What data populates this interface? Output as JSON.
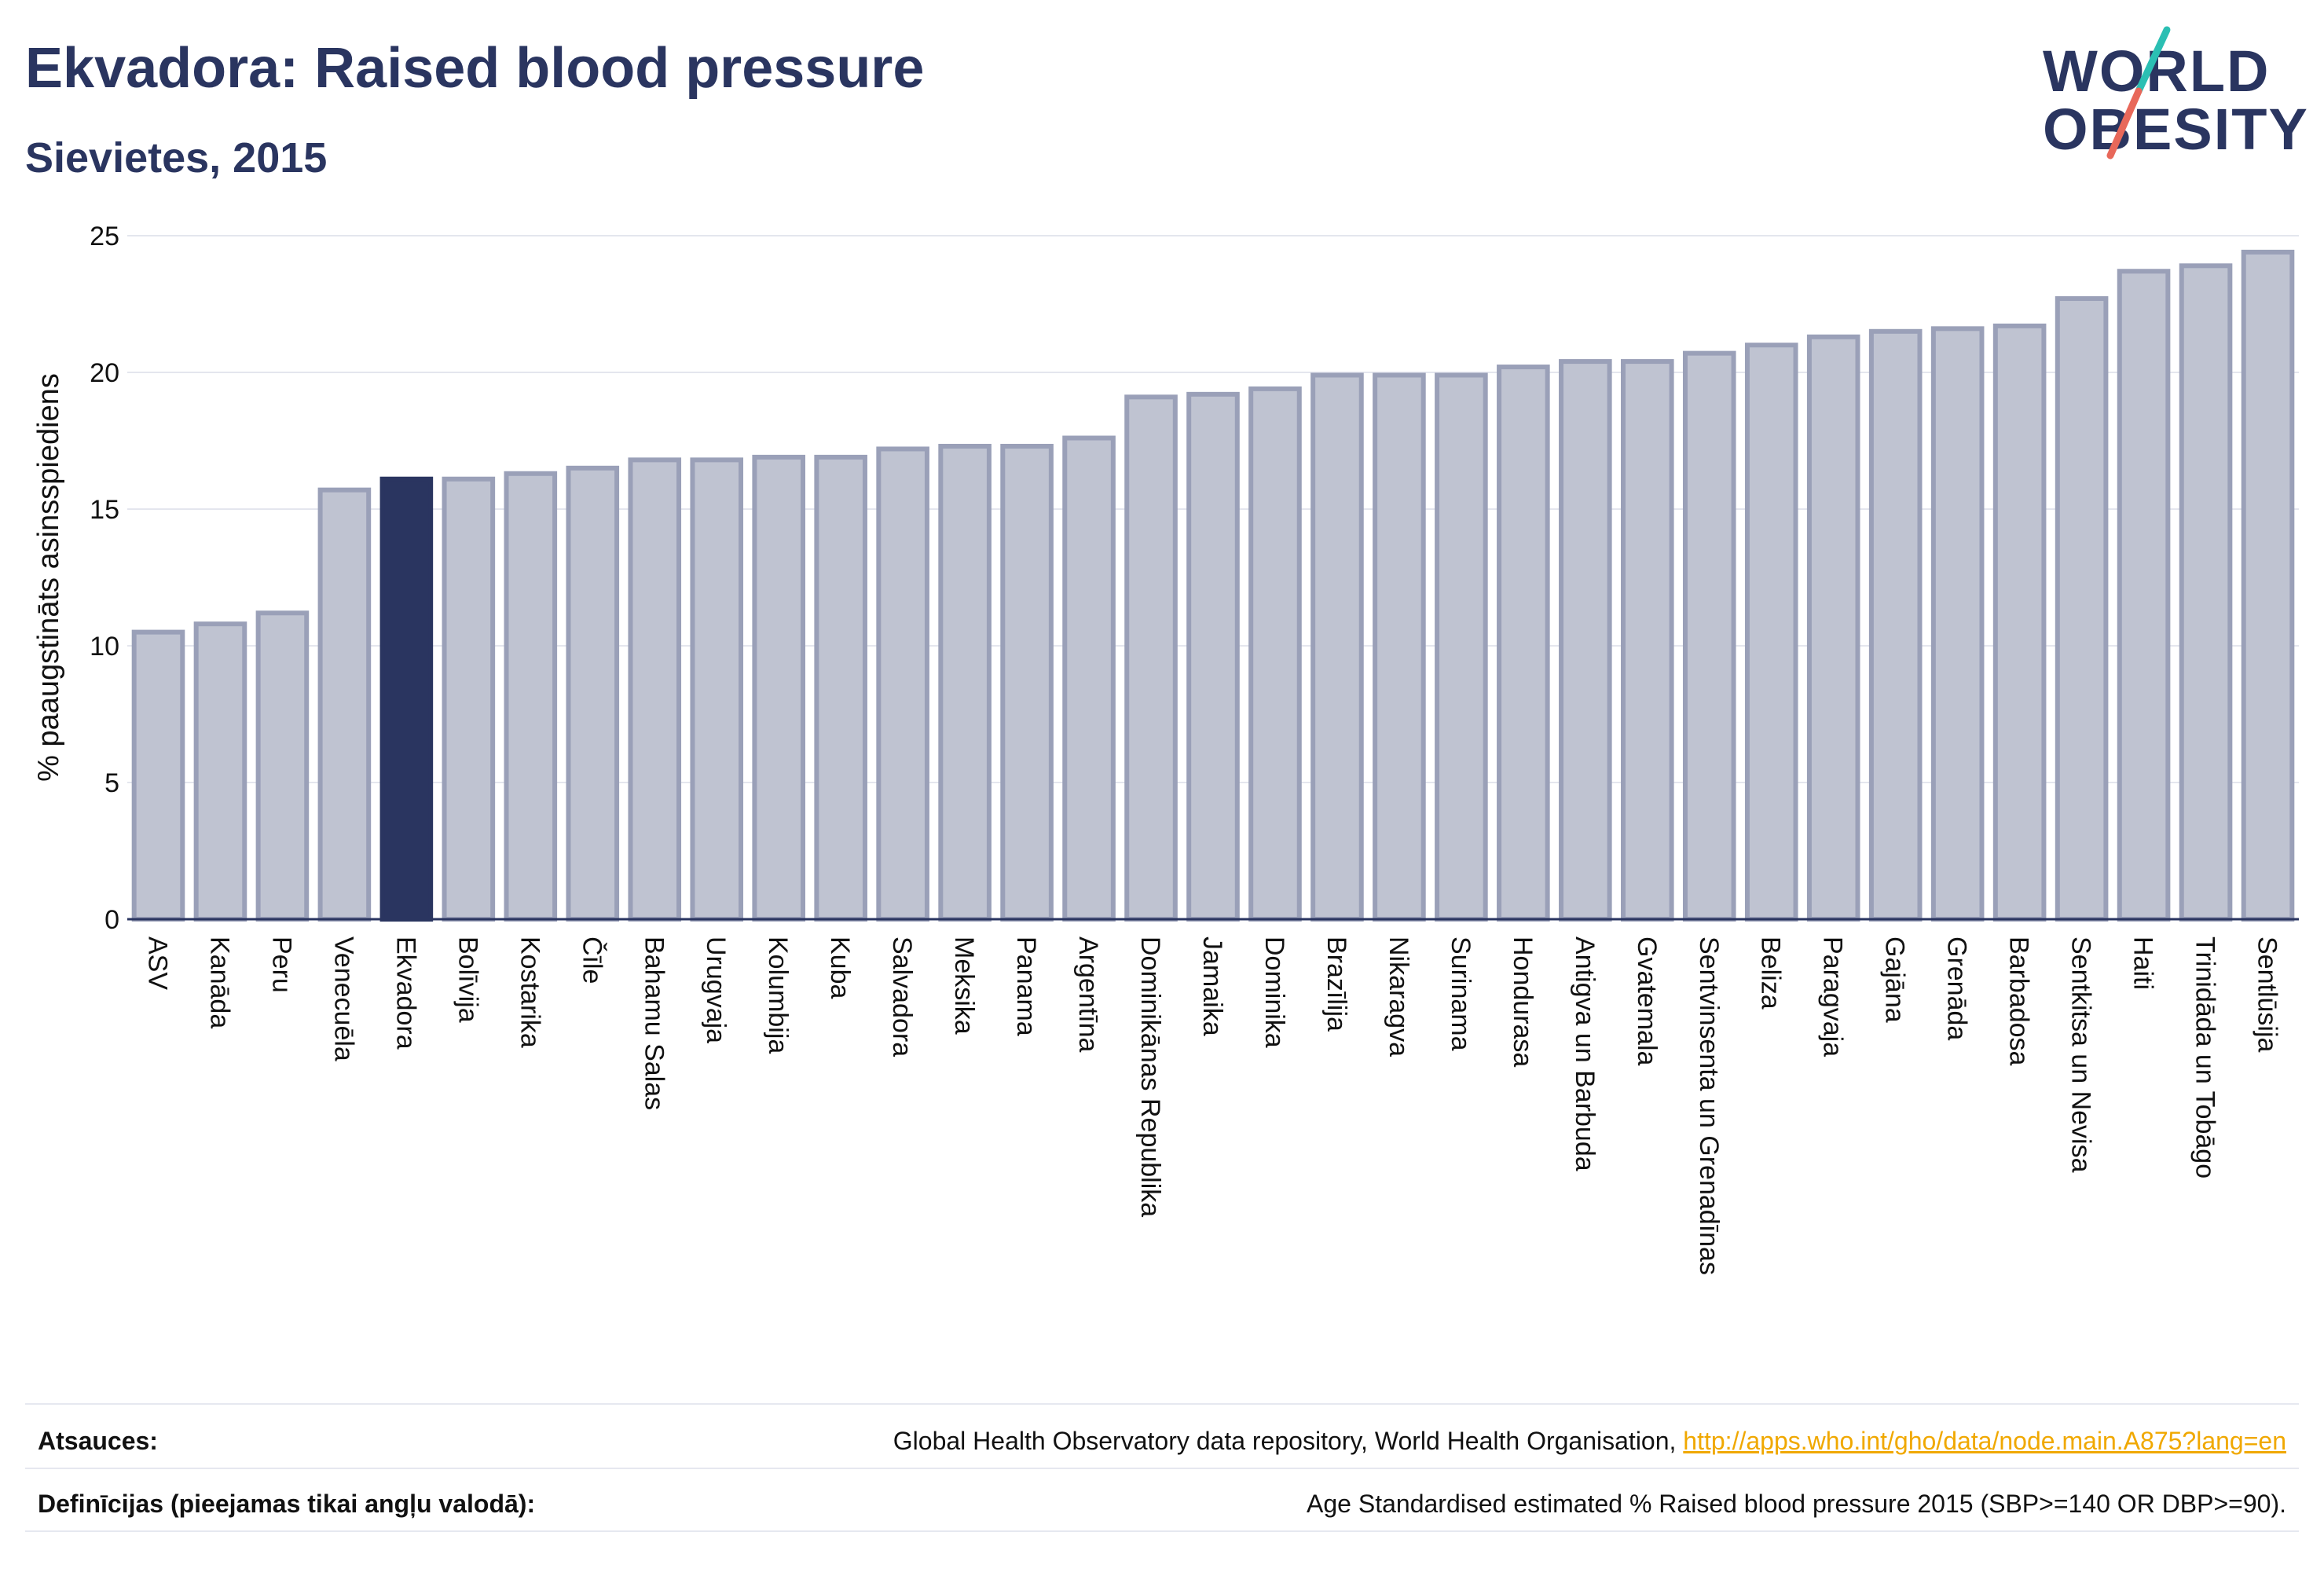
{
  "header": {
    "title": "Ekvadora: Raised blood pressure",
    "subtitle": "Sievietes, 2015"
  },
  "logo": {
    "line1": "WORLD",
    "line2": "OBESITY",
    "slash_colors": [
      "#2bbfb3",
      "#e8685a"
    ]
  },
  "colors": {
    "highlight": "#2a3560",
    "bar_fill": "#bfc3d1",
    "bar_stroke": "#9aa0b8",
    "grid": "#e4e6ee",
    "axis": "#2a3560"
  },
  "chart_data": {
    "type": "bar",
    "ylabel": "% paaugstināts asinsspiediens",
    "ylim": [
      0,
      25
    ],
    "yticks": [
      0,
      5,
      10,
      15,
      20,
      25
    ],
    "grid": true,
    "highlight": "Ekvadora",
    "categories": [
      "ASV",
      "Kanāda",
      "Peru",
      "Venecuēla",
      "Ekvadora",
      "Bolīvija",
      "Kostarika",
      "Čīle",
      "Bahamu Salas",
      "Urugvaja",
      "Kolumbija",
      "Kuba",
      "Salvadora",
      "Meksika",
      "Panama",
      "Argentīna",
      "Dominikānas Republika",
      "Jamaika",
      "Dominika",
      "Brazīlija",
      "Nikaragva",
      "Surinama",
      "Hondurasa",
      "Antigva un Barbuda",
      "Gvatemala",
      "Sentvinsenta un Grenadīnas",
      "Beliza",
      "Paragvaja",
      "Gajāna",
      "Grenāda",
      "Barbadosa",
      "Sentkitsa un Nevisa",
      "Haiti",
      "Trinidāda un Tobāgo",
      "Sentlūsija"
    ],
    "values": [
      10.5,
      10.8,
      11.2,
      15.7,
      16.1,
      16.1,
      16.3,
      16.5,
      16.8,
      16.8,
      16.9,
      16.9,
      17.2,
      17.3,
      17.3,
      17.6,
      19.1,
      19.2,
      19.4,
      19.9,
      19.9,
      19.9,
      20.2,
      20.4,
      20.4,
      20.7,
      21.0,
      21.3,
      21.5,
      21.6,
      21.7,
      22.7,
      23.7,
      23.9,
      24.4
    ]
  },
  "footer": {
    "sources_label": "Atsauces:",
    "sources_text": "Global Health Observatory data repository, World Health Organisation, ",
    "sources_link": "http://apps.who.int/gho/data/node.main.A875?lang=en",
    "definitions_label": "Definīcijas (pieejamas tikai angļu valodā):",
    "definitions_text": "Age Standardised estimated % Raised blood pressure 2015 (SBP>=140 OR DBP>=90)."
  }
}
